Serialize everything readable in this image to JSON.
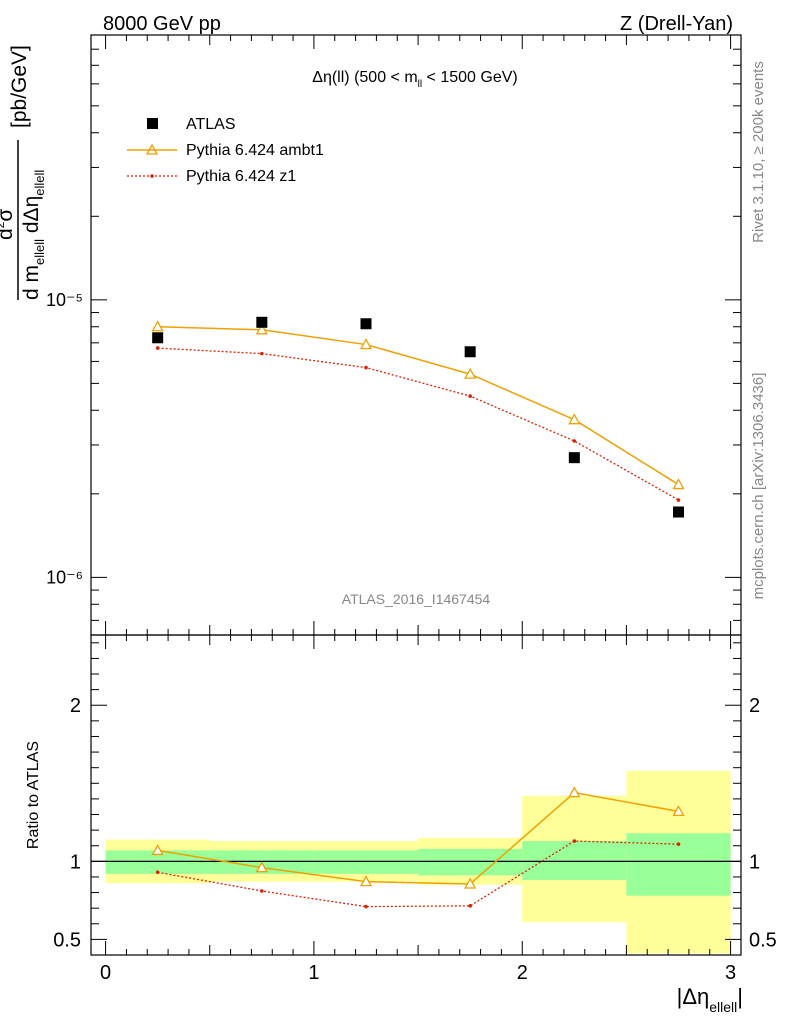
{
  "header": {
    "left_title": "8000 GeV pp",
    "right_title": "Z (Drell-Yan)"
  },
  "side": {
    "rivet_label": "Rivet 3.1.10, ≥ 200k events",
    "mcplots_label": "mcplots.cern.ch [arXiv:1306.3436]"
  },
  "colors": {
    "data": "#000000",
    "ambt1": "#f0a000",
    "z1": "#dd2200",
    "band_outer": "#ffff99",
    "band_inner": "#99ff99"
  },
  "chart_data": [
    {
      "type": "line",
      "title": "Δη(ll) (500 < m_ll < 1500 GeV)",
      "ylabel": "d²σ / d m_ellell dΔη_ellell [pb/GeV]",
      "xlabel": "",
      "yscale": "log",
      "xlim": [
        -0.07,
        3.05
      ],
      "ylim": [
        6.2e-07,
        9e-05
      ],
      "yticks": [
        {
          "value": 1e-06,
          "label": "10⁻⁶"
        },
        {
          "value": 1e-05,
          "label": "10⁻⁵"
        }
      ],
      "watermark": "ATLAS_2016_I1467454",
      "x": [
        0.25,
        0.75,
        1.25,
        1.75,
        2.25,
        2.75
      ],
      "series": [
        {
          "name": "ATLAS",
          "style": "markers",
          "values": [
            7.3e-06,
            8.3e-06,
            8.2e-06,
            6.5e-06,
            2.7e-06,
            1.72e-06
          ]
        },
        {
          "name": "Pythia 6.424 ambt1",
          "style": "solid-triangles",
          "values": [
            8e-06,
            7.8e-06,
            6.9e-06,
            5.4e-06,
            3.7e-06,
            2.16e-06
          ]
        },
        {
          "name": "Pythia 6.424 z1",
          "style": "dotted",
          "values": [
            6.7e-06,
            6.4e-06,
            5.7e-06,
            4.5e-06,
            3.1e-06,
            1.9e-06
          ]
        }
      ],
      "legend": [
        "ATLAS",
        "Pythia 6.424 ambt1",
        "Pythia 6.424 z1"
      ],
      "legend_position": "top-left"
    },
    {
      "type": "line",
      "ylabel": "Ratio to ATLAS",
      "xlabel": "|Δη_ellell|",
      "xlim": [
        -0.07,
        3.05
      ],
      "ylim": [
        0.4,
        2.45
      ],
      "xticks": [
        0,
        1,
        2,
        3
      ],
      "yticks": [
        {
          "value": 0.5,
          "label": "0.5"
        },
        {
          "value": 1,
          "label": "1"
        },
        {
          "value": 2,
          "label": "2"
        }
      ],
      "bins": [
        [
          0,
          0.5
        ],
        [
          0.5,
          1
        ],
        [
          1,
          1.5
        ],
        [
          1.5,
          2
        ],
        [
          2,
          2.5
        ],
        [
          2.5,
          3
        ]
      ],
      "band_outer": [
        [
          0.86,
          1.14
        ],
        [
          0.87,
          1.13
        ],
        [
          0.87,
          1.13
        ],
        [
          0.85,
          1.15
        ],
        [
          0.61,
          1.42
        ],
        [
          0.41,
          1.58
        ]
      ],
      "band_inner": [
        [
          0.92,
          1.07
        ],
        [
          0.92,
          1.07
        ],
        [
          0.92,
          1.07
        ],
        [
          0.91,
          1.08
        ],
        [
          0.88,
          1.13
        ],
        [
          0.78,
          1.18
        ]
      ],
      "x": [
        0.25,
        0.75,
        1.25,
        1.75,
        2.25,
        2.75
      ],
      "series": [
        {
          "name": "Pythia 6.424 ambt1",
          "values": [
            1.07,
            0.96,
            0.87,
            0.855,
            1.44,
            1.32
          ]
        },
        {
          "name": "Pythia 6.424 z1",
          "values": [
            0.93,
            0.81,
            0.71,
            0.715,
            1.13,
            1.11
          ]
        }
      ]
    }
  ]
}
